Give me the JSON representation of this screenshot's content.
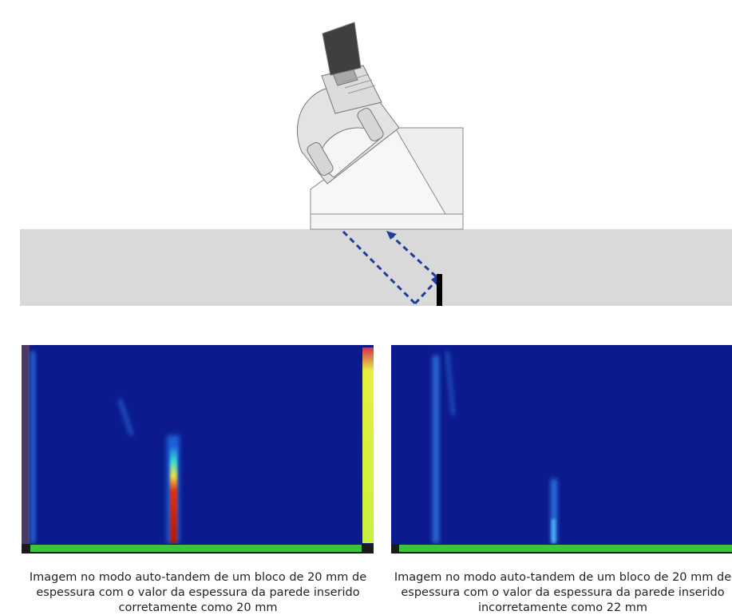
{
  "captions": [
    "Imagem no modo auto-tandem de um bloco de 20 mm de espessura com o valor da espessura da parede inserido corretamente como 20 mm",
    "Imagem no modo auto-tandem de um bloco de 20 mm de espessura com o valor da espessura da parede inserido incorretamente como 22 mm"
  ]
}
